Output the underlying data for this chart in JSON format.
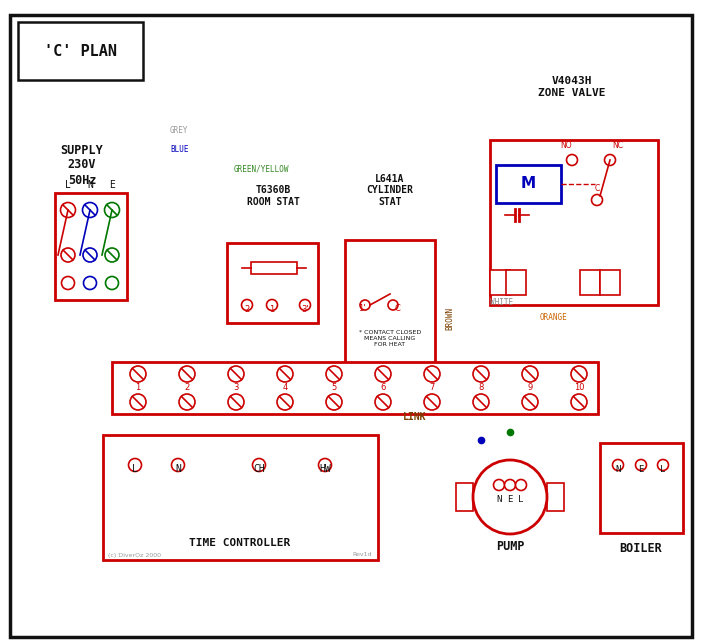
{
  "red": "#cc0000",
  "blue": "#0000bb",
  "green": "#007700",
  "black": "#111111",
  "brown": "#7B3F00",
  "orange": "#cc6600",
  "grey": "#999999",
  "gyl": "#338822",
  "white_w": "#888888",
  "title": "'C' PLAN",
  "zone_valve": "V4043H\nZONE VALVE",
  "supply_lbl": "SUPPLY\n230V\n50Hz",
  "room_stat_lbl": "T6360B\nROOM STAT",
  "cyl_stat_lbl": "L641A\nCYLINDER\nSTAT",
  "time_ctrl_lbl": "TIME CONTROLLER",
  "pump_lbl": "PUMP",
  "boiler_lbl": "BOILER",
  "link_lbl": "LINK",
  "copyright": "(c) DiverOz 2000",
  "rev": "Rev1d",
  "contact_note": "* CONTACT CLOSED\nMEANS CALLING\nFOR HEAT"
}
